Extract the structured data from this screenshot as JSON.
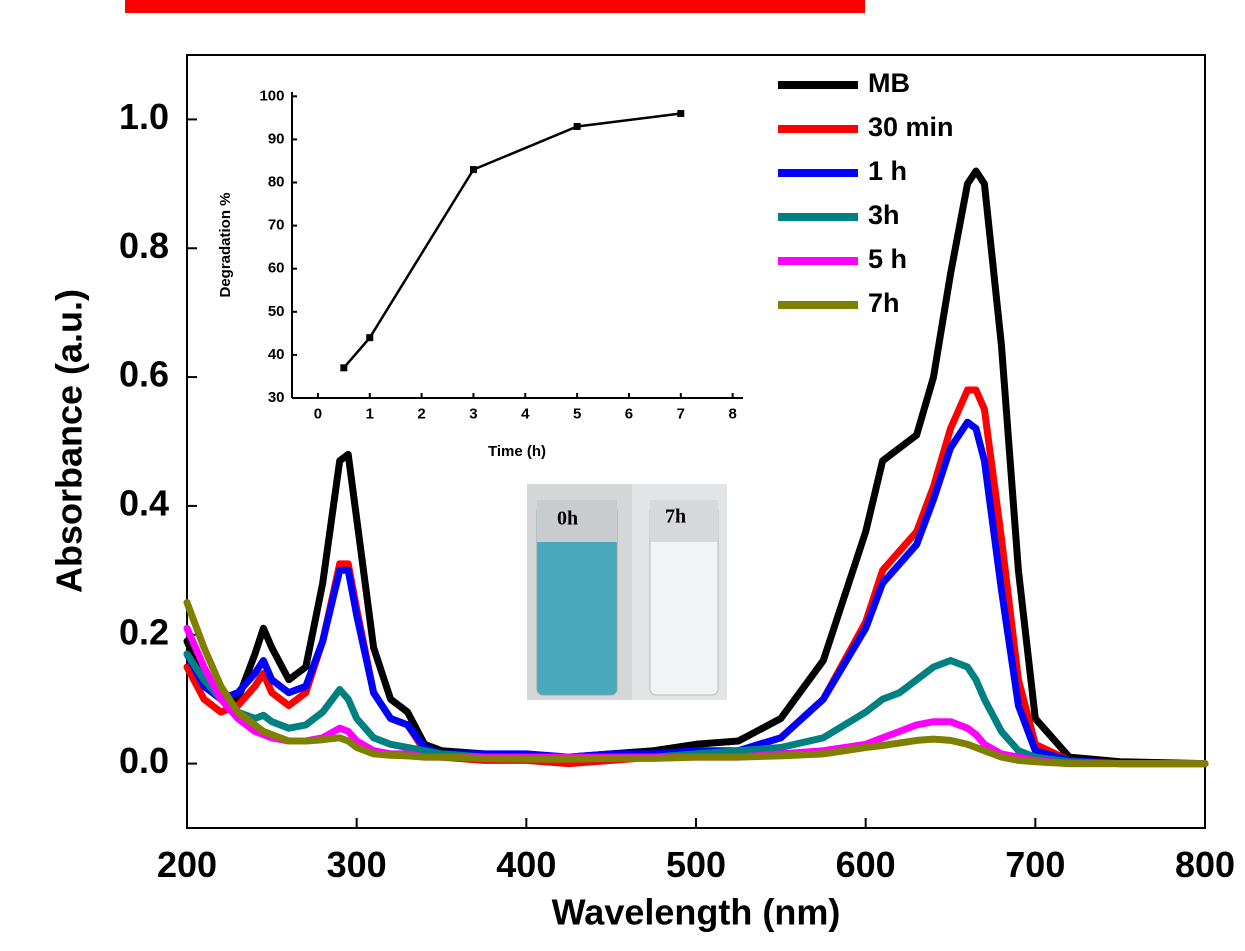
{
  "chart_data": [
    {
      "type": "line",
      "xlabel": "Wavelength (nm)",
      "ylabel": "Absorbance (a.u.)",
      "x": [
        200,
        210,
        220,
        230,
        240,
        245,
        250,
        260,
        270,
        280,
        290,
        295,
        300,
        310,
        320,
        330,
        340,
        350,
        375,
        400,
        425,
        450,
        475,
        500,
        525,
        550,
        575,
        600,
        610,
        620,
        630,
        640,
        650,
        660,
        665,
        670,
        680,
        690,
        700,
        720,
        750,
        800
      ],
      "series": [
        {
          "name": "MB",
          "color": "#000000",
          "values": [
            0.19,
            0.13,
            0.1,
            0.1,
            0.17,
            0.21,
            0.18,
            0.13,
            0.15,
            0.28,
            0.47,
            0.48,
            0.38,
            0.18,
            0.1,
            0.08,
            0.03,
            0.02,
            0.015,
            0.01,
            0.01,
            0.015,
            0.02,
            0.03,
            0.035,
            0.07,
            0.16,
            0.36,
            0.47,
            0.49,
            0.51,
            0.6,
            0.76,
            0.9,
            0.92,
            0.9,
            0.65,
            0.3,
            0.07,
            0.01,
            0.003,
            0
          ]
        },
        {
          "name": "30 min",
          "color": "#ff0000",
          "values": [
            0.15,
            0.1,
            0.08,
            0.09,
            0.12,
            0.14,
            0.11,
            0.09,
            0.11,
            0.19,
            0.31,
            0.31,
            0.24,
            0.11,
            0.07,
            0.06,
            0.02,
            0.01,
            0.005,
            0.005,
            0,
            0.005,
            0.01,
            0.015,
            0.02,
            0.04,
            0.1,
            0.22,
            0.3,
            0.33,
            0.36,
            0.43,
            0.52,
            0.58,
            0.58,
            0.55,
            0.35,
            0.13,
            0.03,
            0.005,
            0,
            0
          ]
        },
        {
          "name": "1 h",
          "color": "#0000ff",
          "values": [
            0.17,
            0.12,
            0.1,
            0.11,
            0.14,
            0.16,
            0.13,
            0.11,
            0.12,
            0.19,
            0.3,
            0.3,
            0.23,
            0.11,
            0.07,
            0.06,
            0.025,
            0.015,
            0.015,
            0.015,
            0.01,
            0.015,
            0.015,
            0.02,
            0.02,
            0.04,
            0.1,
            0.21,
            0.28,
            0.31,
            0.34,
            0.41,
            0.49,
            0.53,
            0.52,
            0.47,
            0.27,
            0.09,
            0.02,
            0.005,
            0,
            0
          ]
        },
        {
          "name": "3h",
          "color": "#008080",
          "values": [
            0.17,
            0.13,
            0.1,
            0.08,
            0.07,
            0.075,
            0.065,
            0.055,
            0.06,
            0.08,
            0.115,
            0.1,
            0.07,
            0.04,
            0.03,
            0.025,
            0.02,
            0.015,
            0.01,
            0.01,
            0.01,
            0.01,
            0.01,
            0.015,
            0.02,
            0.025,
            0.04,
            0.08,
            0.1,
            0.11,
            0.13,
            0.15,
            0.16,
            0.15,
            0.13,
            0.1,
            0.05,
            0.02,
            0.01,
            0.003,
            0,
            0
          ]
        },
        {
          "name": "5 h",
          "color": "#ff00ff",
          "values": [
            0.21,
            0.15,
            0.1,
            0.07,
            0.05,
            0.045,
            0.04,
            0.035,
            0.035,
            0.04,
            0.055,
            0.05,
            0.035,
            0.02,
            0.015,
            0.015,
            0.01,
            0.01,
            0.01,
            0.01,
            0.01,
            0.01,
            0.01,
            0.01,
            0.01,
            0.015,
            0.02,
            0.03,
            0.04,
            0.05,
            0.06,
            0.065,
            0.065,
            0.055,
            0.045,
            0.03,
            0.015,
            0.01,
            0.005,
            0,
            0,
            0
          ]
        },
        {
          "name": "7h",
          "color": "#808000",
          "values": [
            0.25,
            0.18,
            0.12,
            0.08,
            0.06,
            0.05,
            0.045,
            0.035,
            0.035,
            0.037,
            0.04,
            0.035,
            0.025,
            0.015,
            0.013,
            0.012,
            0.01,
            0.01,
            0.008,
            0.007,
            0.007,
            0.008,
            0.008,
            0.01,
            0.01,
            0.012,
            0.015,
            0.025,
            0.028,
            0.032,
            0.036,
            0.038,
            0.036,
            0.03,
            0.025,
            0.02,
            0.01,
            0.005,
            0.003,
            0,
            0,
            0
          ]
        }
      ],
      "xlim": [
        200,
        800
      ],
      "xticks": [
        200,
        300,
        400,
        500,
        600,
        700,
        800
      ],
      "ylim": [
        -0.1,
        1.1
      ],
      "yticks": [
        {
          "value": 0,
          "label": "0.0"
        },
        0.2,
        0.4,
        0.6,
        0.8,
        {
          "value": 1,
          "label": "1.0"
        }
      ],
      "legend": "upper right"
    },
    {
      "type": "line",
      "xlabel": "Time (h)",
      "ylabel": "Degradation %",
      "color": "#000000",
      "x": [
        0.5,
        1,
        3,
        5,
        7
      ],
      "values": [
        37,
        44,
        83,
        93,
        96
      ],
      "xlim": [
        -0.5,
        8.2
      ],
      "xticks": [
        0,
        1,
        2,
        3,
        4,
        5,
        6,
        7,
        8
      ],
      "ylim": [
        30,
        101
      ],
      "yticks": [
        30,
        40,
        50,
        60,
        70,
        80,
        90,
        100
      ]
    }
  ],
  "photo_labels": [
    "0h",
    "7h"
  ]
}
